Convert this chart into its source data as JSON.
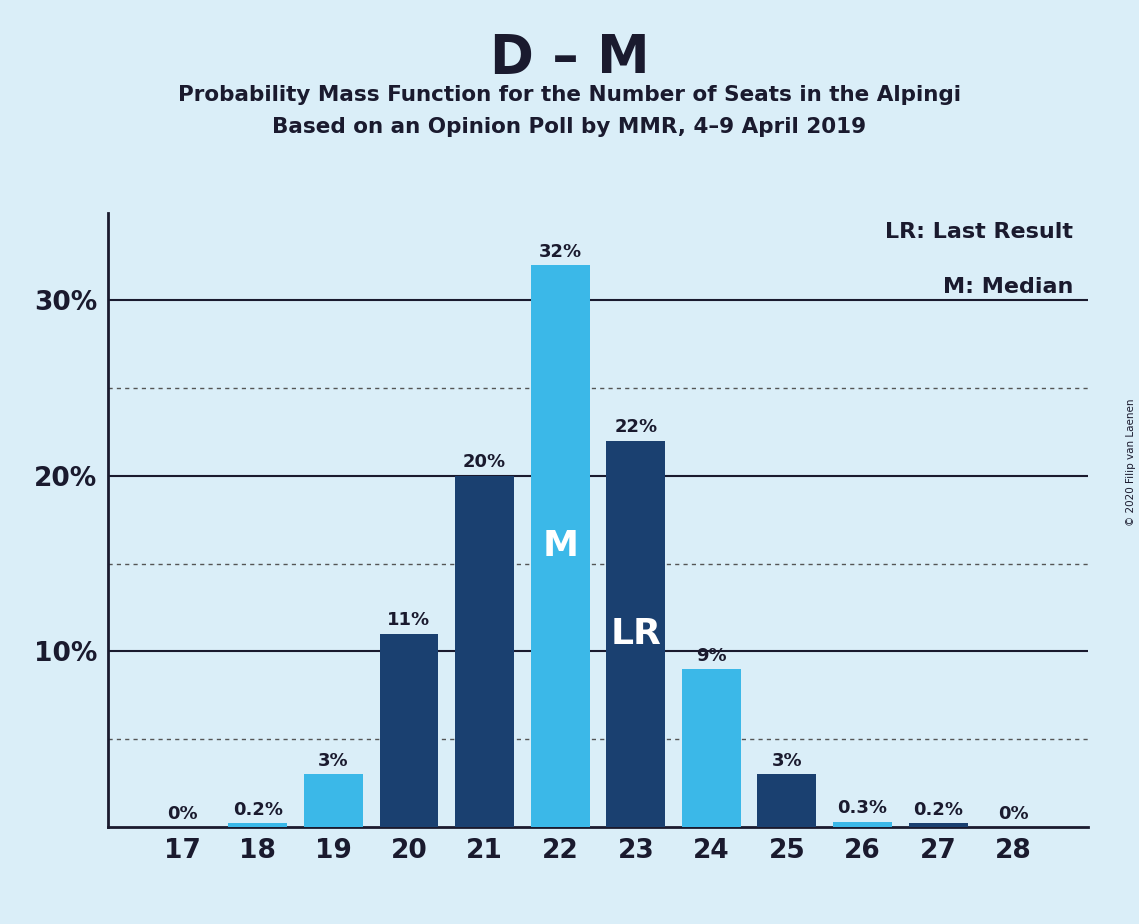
{
  "title": "D – M",
  "subtitle1": "Probability Mass Function for the Number of Seats in the Alpingi",
  "subtitle2": "Based on an Opinion Poll by MMR, 4–9 April 2019",
  "copyright": "© 2020 Filip van Laenen",
  "seats": [
    17,
    18,
    19,
    20,
    21,
    22,
    23,
    24,
    25,
    26,
    27,
    28
  ],
  "probabilities": [
    0.0,
    0.2,
    3.0,
    11.0,
    20.0,
    32.0,
    22.0,
    9.0,
    3.0,
    0.3,
    0.2,
    0.0
  ],
  "bar_labels": [
    "0%",
    "0.2%",
    "3%",
    "11%",
    "20%",
    "32%",
    "22%",
    "9%",
    "3%",
    "0.3%",
    "0.2%",
    "0%"
  ],
  "bar_colors": [
    "#3bb8e8",
    "#3bb8e8",
    "#3bb8e8",
    "#1a4070",
    "#1a4070",
    "#3bb8e8",
    "#1a4070",
    "#3bb8e8",
    "#1a4070",
    "#3bb8e8",
    "#1a4070",
    "#3bb8e8"
  ],
  "median_seat": 22,
  "last_result_seat": 23,
  "color_light_blue": "#3bb8e8",
  "color_dark_blue": "#1a4070",
  "background_color": "#daeef8",
  "yticks": [
    0,
    10,
    20,
    30
  ],
  "ytick_labels": [
    "",
    "10%",
    "20%",
    "30%"
  ],
  "dotted_lines": [
    5,
    15,
    25
  ],
  "ylim": [
    0,
    35
  ],
  "legend_lr": "LR: Last Result",
  "legend_m": "M: Median"
}
